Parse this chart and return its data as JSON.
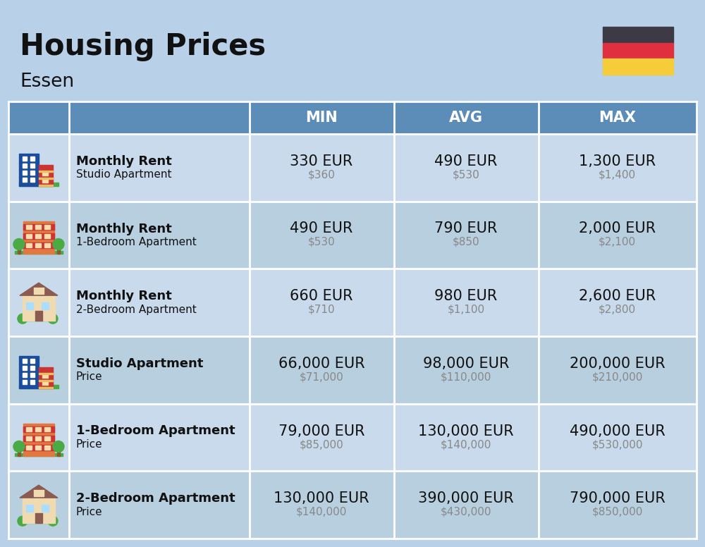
{
  "title": "Housing Prices",
  "subtitle": "Essen",
  "bg_color": "#b8d0e8",
  "header_bg": "#5b8db8",
  "header_text_color": "#ffffff",
  "row_bgs": [
    "#c8daeb",
    "#b8cfe0"
  ],
  "col_props": [
    0.088,
    0.262,
    0.21,
    0.21,
    0.23
  ],
  "headers": [
    "",
    "",
    "MIN",
    "AVG",
    "MAX"
  ],
  "rows": [
    {
      "icon_type": "blue_studio",
      "label_bold": "Monthly Rent",
      "label_sub": "Studio Apartment",
      "min_eur": "330 EUR",
      "min_usd": "$360",
      "avg_eur": "490 EUR",
      "avg_usd": "$530",
      "max_eur": "1,300 EUR",
      "max_usd": "$1,400"
    },
    {
      "icon_type": "orange_apt",
      "label_bold": "Monthly Rent",
      "label_sub": "1-Bedroom Apartment",
      "min_eur": "490 EUR",
      "min_usd": "$530",
      "avg_eur": "790 EUR",
      "avg_usd": "$850",
      "max_eur": "2,000 EUR",
      "max_usd": "$2,100"
    },
    {
      "icon_type": "beige_apt",
      "label_bold": "Monthly Rent",
      "label_sub": "2-Bedroom Apartment",
      "min_eur": "660 EUR",
      "min_usd": "$710",
      "avg_eur": "980 EUR",
      "avg_usd": "$1,100",
      "max_eur": "2,600 EUR",
      "max_usd": "$2,800"
    },
    {
      "icon_type": "blue_studio",
      "label_bold": "Studio Apartment",
      "label_sub": "Price",
      "min_eur": "66,000 EUR",
      "min_usd": "$71,000",
      "avg_eur": "98,000 EUR",
      "avg_usd": "$110,000",
      "max_eur": "200,000 EUR",
      "max_usd": "$210,000"
    },
    {
      "icon_type": "orange_apt",
      "label_bold": "1-Bedroom Apartment",
      "label_sub": "Price",
      "min_eur": "79,000 EUR",
      "min_usd": "$85,000",
      "avg_eur": "130,000 EUR",
      "avg_usd": "$140,000",
      "max_eur": "490,000 EUR",
      "max_usd": "$530,000"
    },
    {
      "icon_type": "beige_apt",
      "label_bold": "2-Bedroom Apartment",
      "label_sub": "Price",
      "min_eur": "130,000 EUR",
      "min_usd": "$140,000",
      "avg_eur": "390,000 EUR",
      "avg_usd": "$430,000",
      "max_eur": "790,000 EUR",
      "max_usd": "$850,000"
    }
  ],
  "flag_colors": [
    "#3d3a45",
    "#e03040",
    "#f5cc3a"
  ],
  "title_fontsize": 30,
  "subtitle_fontsize": 19,
  "eur_fontsize": 15,
  "usd_fontsize": 11,
  "label_bold_fontsize": 13,
  "label_sub_fontsize": 11,
  "header_fontsize": 15
}
